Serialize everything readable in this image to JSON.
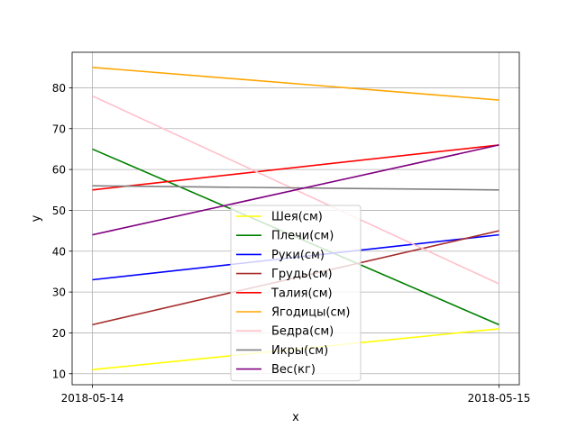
{
  "chart_data": {
    "type": "line",
    "title": "",
    "xlabel": "x",
    "ylabel": "y",
    "x": [
      "2018-05-14",
      "2018-05-15"
    ],
    "ylim": [
      7.3,
      88.7
    ],
    "yticks": [
      10,
      20,
      30,
      40,
      50,
      60,
      70,
      80
    ],
    "grid": true,
    "legend_position": "lower center",
    "series": [
      {
        "name": "Шея(см)",
        "color": "#ffff00",
        "values": [
          11,
          21
        ]
      },
      {
        "name": "Плечи(см)",
        "color": "#008000",
        "values": [
          65,
          22
        ]
      },
      {
        "name": "Руки(см)",
        "color": "#0000ff",
        "values": [
          33,
          44
        ]
      },
      {
        "name": "Грудь(см)",
        "color": "#a52a2a",
        "values": [
          22,
          45
        ]
      },
      {
        "name": "Талия(см)",
        "color": "#ff0000",
        "values": [
          55,
          66
        ]
      },
      {
        "name": "Ягодицы(см)",
        "color": "#ffa500",
        "values": [
          85,
          77
        ]
      },
      {
        "name": "Бедра(см)",
        "color": "#ffc0cb",
        "values": [
          78,
          32
        ]
      },
      {
        "name": "Икры(см)",
        "color": "#808080",
        "values": [
          56,
          55
        ]
      },
      {
        "name": "Вес(кг)",
        "color": "#800080",
        "values": [
          44,
          66
        ]
      }
    ]
  }
}
